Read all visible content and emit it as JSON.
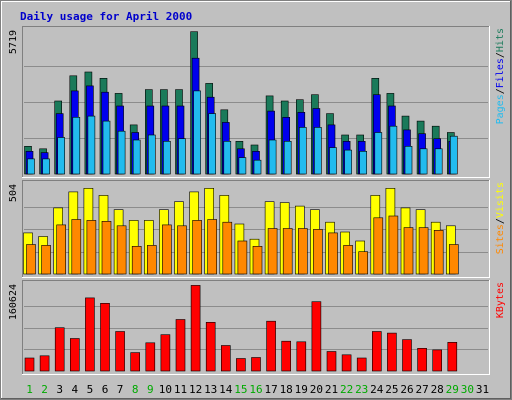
{
  "chart_data": {
    "type": "bar",
    "title": "Daily usage for April 2000",
    "categories": [
      "1",
      "2",
      "3",
      "4",
      "5",
      "6",
      "7",
      "8",
      "9",
      "10",
      "11",
      "12",
      "13",
      "14",
      "15",
      "16",
      "17",
      "18",
      "19",
      "20",
      "21",
      "22",
      "23",
      "24",
      "25",
      "26",
      "27",
      "28",
      "29",
      "30",
      "31"
    ],
    "weekend_days": [
      "1",
      "2",
      "8",
      "9",
      "15",
      "16",
      "22",
      "23",
      "29",
      "30"
    ],
    "panels": [
      {
        "id": "pages-files-hits",
        "max_label": "5719",
        "ymax": 5719,
        "grid": true,
        "series": [
          {
            "name": "Hits",
            "color": "#1a7a5a",
            "values": [
              1100,
              1000,
              2900,
              3900,
              4050,
              3800,
              3200,
              1950,
              3350,
              3350,
              3350,
              5650,
              3600,
              2550,
              1300,
              1150,
              3100,
              2900,
              2950,
              3150,
              2400,
              1550,
              1550,
              3800,
              3200,
              2300,
              2100,
              1900,
              1650,
              0,
              0
            ]
          },
          {
            "name": "Files",
            "color": "#0000ee",
            "values": [
              900,
              850,
              2400,
              3300,
              3500,
              3250,
              2700,
              1650,
              2700,
              2700,
              2700,
              4600,
              3050,
              2050,
              1000,
              900,
              2500,
              2250,
              2450,
              2600,
              1950,
              1300,
              1300,
              3150,
              2700,
              1750,
              1600,
              1400,
              1300,
              0,
              0
            ]
          },
          {
            "name": "Pages",
            "color": "#22bbee",
            "values": [
              600,
              600,
              1450,
              2250,
              2300,
              2100,
              1700,
              1350,
              1550,
              1300,
              1400,
              3300,
              2400,
              1300,
              650,
              550,
              1350,
              1300,
              1850,
              1850,
              1050,
              950,
              900,
              1650,
              1900,
              1100,
              1000,
              1000,
              1500,
              0,
              0
            ]
          }
        ]
      },
      {
        "id": "sites-visits",
        "max_label": "504",
        "ymax": 504,
        "grid": true,
        "series": [
          {
            "name": "Visits",
            "color": "#ffff00",
            "values": [
              230,
              210,
              370,
              460,
              480,
              440,
              360,
              300,
              300,
              360,
              405,
              460,
              480,
              440,
              280,
              195,
              405,
              400,
              380,
              360,
              290,
              235,
              185,
              440,
              480,
              370,
              360,
              290,
              270,
              0,
              0
            ]
          },
          {
            "name": "Sites",
            "color": "#ff8800",
            "values": [
              165,
              160,
              275,
              305,
              300,
              295,
              270,
              155,
              160,
              275,
              270,
              300,
              305,
              290,
              185,
              155,
              255,
              255,
              255,
              250,
              230,
              160,
              125,
              315,
              325,
              260,
              260,
              245,
              165,
              0,
              0
            ]
          }
        ]
      },
      {
        "id": "kbytes",
        "max_label": "160624",
        "ymax": 160624,
        "grid": true,
        "series": [
          {
            "name": "KBytes",
            "color": "#ff0000",
            "values": [
              24000,
              28000,
              80000,
              60000,
              135000,
              125000,
              73000,
              34000,
              52000,
              67000,
              95000,
              158000,
              90000,
              47000,
              23000,
              25000,
              92000,
              55000,
              54000,
              128000,
              36000,
              30000,
              24000,
              73000,
              70000,
              58000,
              42000,
              39000,
              53000,
              0,
              0
            ]
          }
        ]
      }
    ],
    "colors": {
      "background": "#c0c0c0",
      "plot_background": "#c0c0c0",
      "title": "#0000cc",
      "weekday_label": "#000000",
      "weekend_label": "#00aa00"
    }
  }
}
